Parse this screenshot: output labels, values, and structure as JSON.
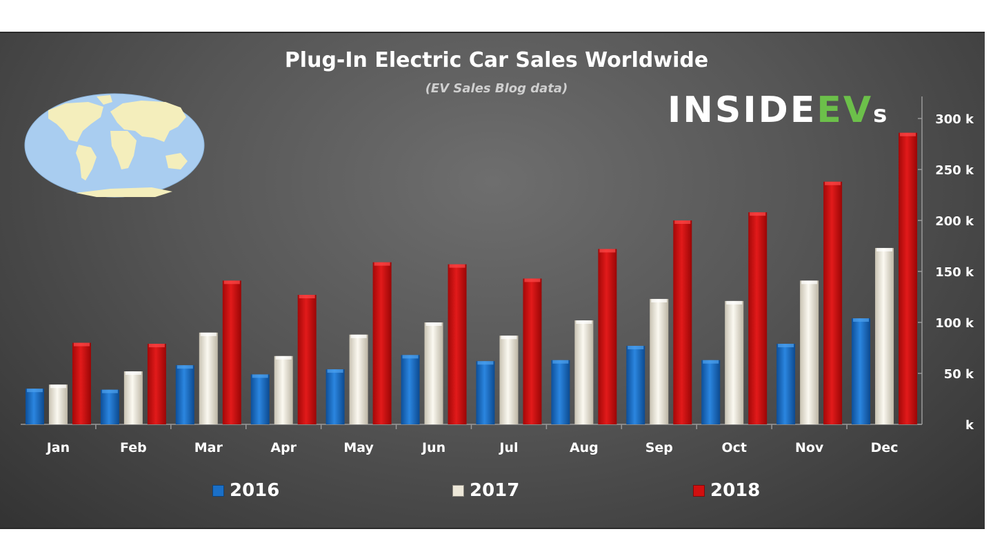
{
  "colors": {
    "s2016": "#1a6fc7",
    "s2017": "#ece7d8",
    "s2018": "#d10f0f",
    "map_ocean": "#a9cdf0",
    "map_land": "#f4eebc"
  },
  "logo": {
    "part1": "INSIDE",
    "part2": "EV",
    "part3": "s"
  },
  "chart_data": {
    "type": "bar",
    "title": "Plug-In Electric Car Sales Worldwide",
    "subtitle": "(EV Sales Blog data)",
    "categories": [
      "Jan",
      "Feb",
      "Mar",
      "Apr",
      "May",
      "Jun",
      "Jul",
      "Aug",
      "Sep",
      "Oct",
      "Nov",
      "Dec"
    ],
    "series": [
      {
        "name": "2016",
        "values": [
          35000,
          34000,
          58000,
          49000,
          54000,
          68000,
          62000,
          63000,
          77000,
          63000,
          79000,
          104000
        ]
      },
      {
        "name": "2017",
        "values": [
          39000,
          52000,
          90000,
          67000,
          88000,
          100000,
          87000,
          102000,
          123000,
          121000,
          141000,
          173000
        ]
      },
      {
        "name": "2018",
        "values": [
          80000,
          79000,
          141000,
          127000,
          159000,
          157000,
          143000,
          172000,
          200000,
          208000,
          238000,
          286000
        ]
      }
    ],
    "ylim": [
      0,
      300000
    ],
    "yticks": [
      0,
      50000,
      100000,
      150000,
      200000,
      250000,
      300000
    ],
    "ytick_labels": [
      "k",
      "50 k",
      "100 k",
      "150 k",
      "200 k",
      "250 k",
      "300 k"
    ],
    "y_axis_position": "right",
    "legend_position": "bottom",
    "grid": false
  }
}
